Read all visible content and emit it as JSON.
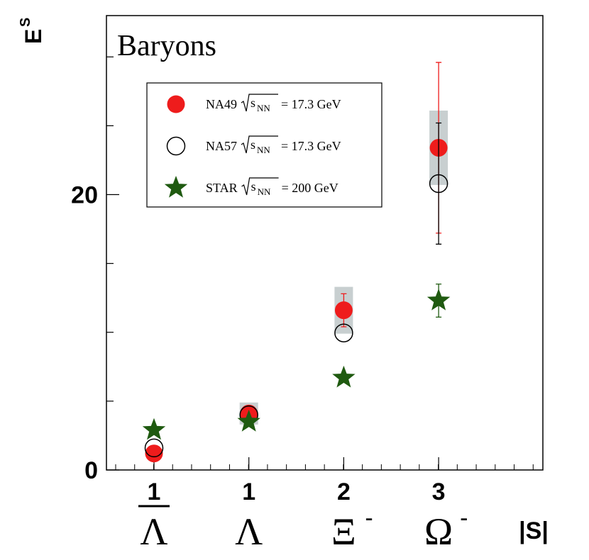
{
  "chart_data": {
    "type": "scatter",
    "title": "Baryons",
    "title_color": "#ee1c1c",
    "ylabel": "E",
    "ylabel_sup": "S",
    "xlabel": "|S|",
    "categories": [
      "1",
      "1",
      "2",
      "3"
    ],
    "particles": [
      "Λ",
      "Λ",
      "Ξ",
      "Ω"
    ],
    "particle_overline": [
      true,
      false,
      false,
      false
    ],
    "particle_charge": [
      null,
      null,
      "-",
      "-"
    ],
    "ylim": [
      0,
      33
    ],
    "yticks": [
      0,
      20
    ],
    "yminor": [
      5,
      10,
      15,
      25,
      30
    ],
    "sqrt_var": "s",
    "sqrt_sub": "NN",
    "series": [
      {
        "name": "NA49",
        "energy_label": "= 17.3 GeV",
        "marker": "filled-circle",
        "color": "#ee1c1c",
        "values": [
          1.2,
          4.1,
          11.6,
          23.4
        ],
        "errors": [
          null,
          null,
          1.2,
          6.2
        ],
        "systematic": [
          null,
          0.8,
          1.7,
          2.7
        ],
        "systematic_color": "#c8cfd0"
      },
      {
        "name": "NA57",
        "energy_label": "= 17.3 GeV",
        "marker": "open-circle",
        "color": "#000000",
        "values": [
          1.6,
          4.0,
          9.95,
          20.8
        ],
        "errors": [
          null,
          null,
          null,
          4.4
        ]
      },
      {
        "name": "STAR",
        "energy_label": "= 200 GeV",
        "marker": "star",
        "color": "#1f5a10",
        "values": [
          2.9,
          3.5,
          6.7,
          12.3
        ],
        "errors": [
          null,
          null,
          null,
          1.2
        ]
      }
    ]
  }
}
